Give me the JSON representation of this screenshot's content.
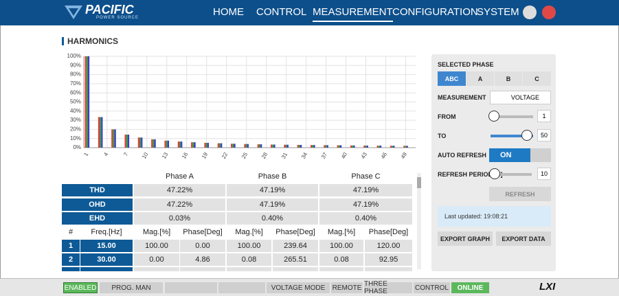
{
  "header": {
    "logo": "PACIFIC",
    "logo_sub": "POWER SOURCE",
    "nav": [
      "HOME",
      "CONTROL",
      "MEASUREMENT",
      "CONFIGURATION",
      "SYSTEM"
    ]
  },
  "section_title": "HARMONICS",
  "chart_data": {
    "type": "bar",
    "x": [
      1,
      2,
      3,
      4,
      5,
      6,
      7,
      8,
      9,
      10,
      11,
      12,
      13,
      14,
      15,
      16,
      17,
      18,
      19,
      20,
      21,
      22,
      23,
      24,
      25,
      26,
      27,
      28,
      29,
      30,
      31,
      32,
      33,
      34,
      35,
      36,
      37,
      38,
      39,
      40,
      41,
      42,
      43,
      44,
      45,
      46,
      47,
      48,
      49,
      50
    ],
    "xlim": [
      0.5,
      50.5
    ],
    "xticks": [
      1,
      4,
      7,
      10,
      13,
      16,
      19,
      22,
      25,
      28,
      31,
      34,
      37,
      40,
      43,
      46,
      49
    ],
    "ylim": [
      0,
      100
    ],
    "yticks": [
      {
        "value": 0,
        "label": "0%"
      },
      {
        "value": 10,
        "label": "10%"
      },
      {
        "value": 20,
        "label": "20%"
      },
      {
        "value": 30,
        "label": "30%"
      },
      {
        "value": 40,
        "label": "40%"
      },
      {
        "value": 50,
        "label": "50%"
      },
      {
        "value": 60,
        "label": "60%"
      },
      {
        "value": 70,
        "label": "70%"
      },
      {
        "value": 80,
        "label": "80%"
      },
      {
        "value": 90,
        "label": "90%"
      },
      {
        "value": 100,
        "label": "100%"
      }
    ],
    "grid": true,
    "series": [
      {
        "color": "#e53935",
        "values": [
          100,
          0,
          33.5,
          0,
          20,
          0,
          14.3,
          0,
          11.1,
          0,
          9.1,
          0,
          7.7,
          0,
          6.7,
          0,
          5.9,
          0,
          5.3,
          0,
          4.8,
          0,
          4.3,
          0,
          4,
          0,
          3.7,
          0,
          3.4,
          0,
          3.2,
          0,
          3,
          0,
          2.9,
          0,
          2.7,
          0,
          2.6,
          0,
          2.4,
          0,
          2.3,
          0,
          2.2,
          0,
          2.1,
          0,
          2,
          0
        ]
      },
      {
        "color": "#2e9e3e",
        "values": [
          100,
          0.08,
          33.5,
          0,
          20,
          0,
          14.3,
          0,
          11.1,
          0,
          9.1,
          0,
          7.7,
          0,
          6.7,
          0,
          5.9,
          0,
          5.3,
          0,
          4.8,
          0,
          4.3,
          0,
          4,
          0,
          3.7,
          0,
          3.4,
          0,
          3.2,
          0,
          3,
          0,
          2.9,
          0,
          2.7,
          0,
          2.6,
          0,
          2.4,
          0,
          2.3,
          0,
          2.2,
          0,
          2.1,
          0,
          2,
          0
        ]
      },
      {
        "color": "#3a3acb",
        "values": [
          100,
          0.08,
          33.5,
          0,
          20,
          0,
          14.3,
          0,
          11.1,
          0,
          9.1,
          0,
          7.7,
          0,
          6.7,
          0,
          5.9,
          0,
          5.3,
          0,
          4.8,
          0,
          4.3,
          0,
          4,
          0,
          3.7,
          0,
          3.4,
          0,
          3.2,
          0,
          3,
          0,
          2.9,
          0,
          2.7,
          0,
          2.6,
          0,
          2.4,
          0,
          2.3,
          0,
          2.2,
          0,
          2.1,
          0,
          2,
          0
        ]
      }
    ]
  },
  "summary_table": {
    "columns": [
      "Phase A",
      "Phase B",
      "Phase C"
    ],
    "rows": [
      [
        "THD",
        "47.22%",
        "47.19%",
        "47.19%"
      ],
      [
        "OHD",
        "47.22%",
        "47.19%",
        "47.19%"
      ],
      [
        "EHD",
        "0.03%",
        "0.40%",
        "0.40%"
      ]
    ]
  },
  "harmonics_table": {
    "columns": [
      "#",
      "Freq.[Hz]",
      "Mag.[%]",
      "Phase[Deg]",
      "Mag.[%]",
      "Phase[Deg]",
      "Mag.[%]",
      "Phase[Deg]"
    ],
    "rows": [
      [
        "1",
        "15.00",
        "100.00",
        "0.00",
        "100.00",
        "239.64",
        "100.00",
        "120.00"
      ],
      [
        "2",
        "30.00",
        "0.00",
        "4.86",
        "0.08",
        "265.51",
        "0.08",
        "92.95"
      ]
    ]
  },
  "panel": {
    "selected_phase_label": "SELECTED PHASE",
    "phase_options": [
      "ABC",
      "A",
      "B",
      "C"
    ],
    "measurement_label": "MEASUREMENT",
    "measurement_value": "VOLTAGE",
    "from_label": "FROM",
    "from_value": "1",
    "to_label": "TO",
    "to_value": "50",
    "auto_refresh_label": "AUTO REFRESH",
    "auto_refresh_value": "ON",
    "refresh_period_label": "REFRESH PERIOD [S]",
    "refresh_period_value": "10",
    "refresh_button": "REFRESH",
    "last_updated": "Last updated: 19:08:21",
    "export_graph": "EXPORT GRAPH",
    "export_data": "EXPORT DATA"
  },
  "status_bar": [
    "ENABLED",
    "PROG. MAN",
    "VOLTAGE MODE",
    "REMOTE",
    "THREE PHASE",
    "CONTROL",
    "ONLINE"
  ],
  "status_logo": "LXI"
}
